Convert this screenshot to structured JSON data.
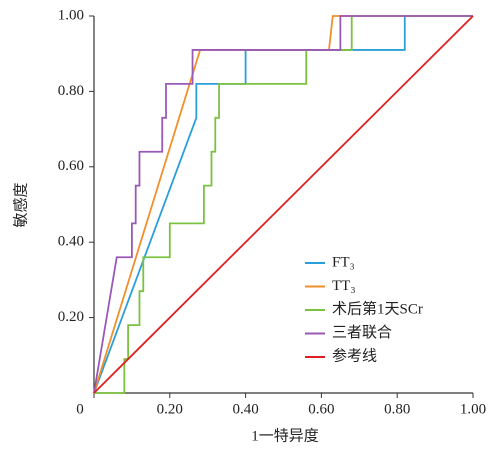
{
  "chart_data": {
    "type": "line",
    "xlabel": "1一特异度",
    "ylabel": "敏感度",
    "xlim": [
      0,
      1
    ],
    "ylim": [
      0,
      1
    ],
    "xticks": [
      {
        "value": 0,
        "label": "0"
      },
      {
        "value": 0.2,
        "label": "0.20"
      },
      {
        "value": 0.4,
        "label": "0.40"
      },
      {
        "value": 0.6,
        "label": "0.60"
      },
      {
        "value": 0.8,
        "label": "0.80"
      },
      {
        "value": 1,
        "label": "1.00"
      }
    ],
    "yticks": [
      {
        "value": 0.2,
        "label": "0.20"
      },
      {
        "value": 0.4,
        "label": "0.40"
      },
      {
        "value": 0.6,
        "label": "0.60"
      },
      {
        "value": 0.8,
        "label": "0.80"
      },
      {
        "value": 1,
        "label": "1.00"
      }
    ],
    "legend": "lower-right",
    "series": [
      {
        "name": "FT₃",
        "color": "#2b9fd9",
        "x": [
          0,
          0.27,
          0.27,
          0.4,
          0.4,
          0.82,
          0.82,
          1
        ],
        "values": [
          0,
          0.73,
          0.82,
          0.82,
          0.91,
          0.91,
          1,
          1
        ]
      },
      {
        "name": "TT₃",
        "color": "#f0902a",
        "x": [
          0,
          0.28,
          0.62,
          0.63,
          1
        ],
        "values": [
          0,
          0.91,
          0.91,
          1,
          1
        ]
      },
      {
        "name": "术后第1天SCr",
        "color": "#7cc242",
        "x": [
          0,
          0.08,
          0.08,
          0.09,
          0.09,
          0.12,
          0.12,
          0.13,
          0.13,
          0.2,
          0.2,
          0.29,
          0.29,
          0.31,
          0.31,
          0.32,
          0.32,
          0.33,
          0.33,
          0.56,
          0.56,
          0.68,
          0.68,
          1
        ],
        "values": [
          0,
          0,
          0.09,
          0.09,
          0.18,
          0.18,
          0.27,
          0.27,
          0.36,
          0.36,
          0.45,
          0.45,
          0.55,
          0.55,
          0.64,
          0.64,
          0.73,
          0.73,
          0.82,
          0.82,
          0.91,
          0.91,
          1,
          1
        ]
      },
      {
        "name": "三者联合",
        "color": "#9b59b6",
        "x": [
          0,
          0.06,
          0.1,
          0.1,
          0.11,
          0.11,
          0.12,
          0.12,
          0.18,
          0.18,
          0.19,
          0.19,
          0.26,
          0.26,
          0.65,
          0.65,
          1
        ],
        "values": [
          0,
          0.36,
          0.36,
          0.45,
          0.45,
          0.55,
          0.55,
          0.64,
          0.64,
          0.73,
          0.73,
          0.82,
          0.82,
          0.91,
          0.91,
          1,
          1
        ]
      },
      {
        "name": "参考线",
        "color": "#e02020",
        "x": [
          0,
          1
        ],
        "values": [
          0,
          1
        ]
      }
    ]
  }
}
